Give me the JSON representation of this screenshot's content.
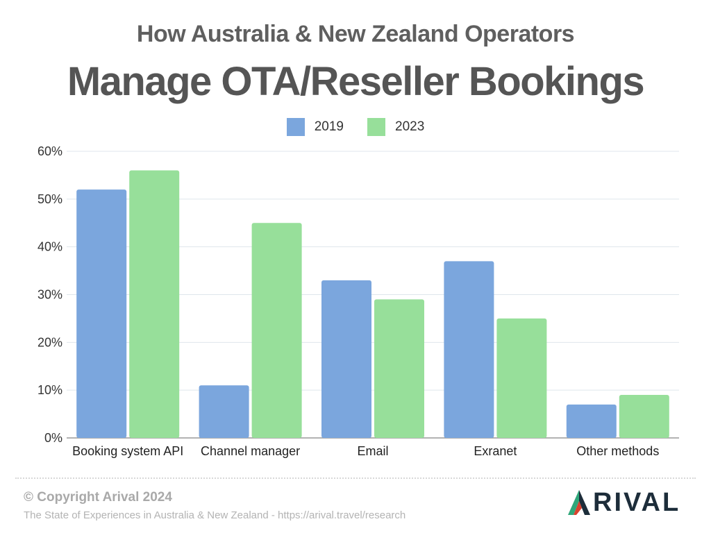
{
  "header": {
    "subtitle": "How Australia & New Zealand Operators",
    "title": "Manage OTA/Reseller Bookings"
  },
  "legend": [
    {
      "label": "2019",
      "color": "#7ba6dd"
    },
    {
      "label": "2023",
      "color": "#97df9a"
    }
  ],
  "chart_data": {
    "type": "bar",
    "title": "Manage OTA/Reseller Bookings",
    "subtitle": "How Australia & New Zealand Operators",
    "categories": [
      "Booking system API",
      "Channel manager",
      "Email",
      "Exranet",
      "Other methods"
    ],
    "series": [
      {
        "name": "2019",
        "values": [
          52,
          11,
          33,
          37,
          7
        ],
        "color": "#7ba6dd"
      },
      {
        "name": "2023",
        "values": [
          56,
          45,
          29,
          25,
          9
        ],
        "color": "#97df9a"
      }
    ],
    "ylim": [
      0,
      60
    ],
    "yticks": [
      0,
      10,
      20,
      30,
      40,
      50,
      60
    ],
    "ytick_labels": [
      "0%",
      "10%",
      "20%",
      "30%",
      "40%",
      "50%",
      "60%"
    ],
    "grid": true,
    "legend_position": "top-center"
  },
  "footer": {
    "copyright": "© Copyright Arival 2024",
    "source": "The State of Experiences in Australia & New Zealand - https://arival.travel/research",
    "logo_text": "ARIVAL"
  }
}
